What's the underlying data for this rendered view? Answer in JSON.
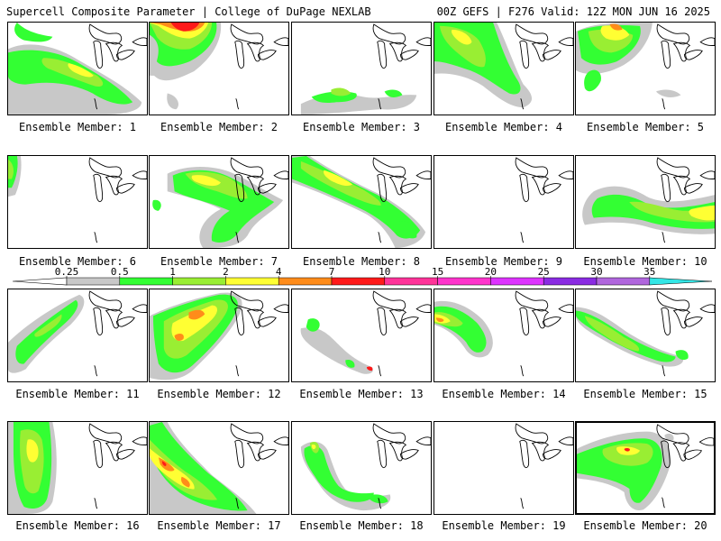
{
  "header": {
    "title_left": "Supercell Composite Parameter | College of DuPage NEXLAB",
    "title_right": "00Z GEFS | F276 Valid: 12Z MON JUN 16 2025"
  },
  "colorbar": {
    "ticks": [
      "0.25",
      "0.5",
      "1",
      "2",
      "4",
      "7",
      "10",
      "15",
      "20",
      "25",
      "30",
      "35"
    ],
    "colors": [
      "#c8c8c8",
      "#33ff33",
      "#99ee33",
      "#ffff33",
      "#ff8c1a",
      "#ff1a1a",
      "#ff3399",
      "#ff33cc",
      "#dd33ff",
      "#8a2be2",
      "#b066dd",
      "#33e6e6"
    ]
  },
  "panels": [
    {
      "label": "Ensemble Member: 1"
    },
    {
      "label": "Ensemble Member: 2"
    },
    {
      "label": "Ensemble Member: 3"
    },
    {
      "label": "Ensemble Member: 4"
    },
    {
      "label": "Ensemble Member: 5"
    },
    {
      "label": "Ensemble Member: 6"
    },
    {
      "label": "Ensemble Member: 7"
    },
    {
      "label": "Ensemble Member: 8"
    },
    {
      "label": "Ensemble Member: 9"
    },
    {
      "label": "Ensemble Member: 10"
    },
    {
      "label": "Ensemble Member: 11"
    },
    {
      "label": "Ensemble Member: 12"
    },
    {
      "label": "Ensemble Member: 13"
    },
    {
      "label": "Ensemble Member: 14"
    },
    {
      "label": "Ensemble Member: 15"
    },
    {
      "label": "Ensemble Member: 16"
    },
    {
      "label": "Ensemble Member: 17"
    },
    {
      "label": "Ensemble Member: 18"
    },
    {
      "label": "Ensemble Member: 19"
    },
    {
      "label": "Ensemble Member: 20"
    }
  ]
}
